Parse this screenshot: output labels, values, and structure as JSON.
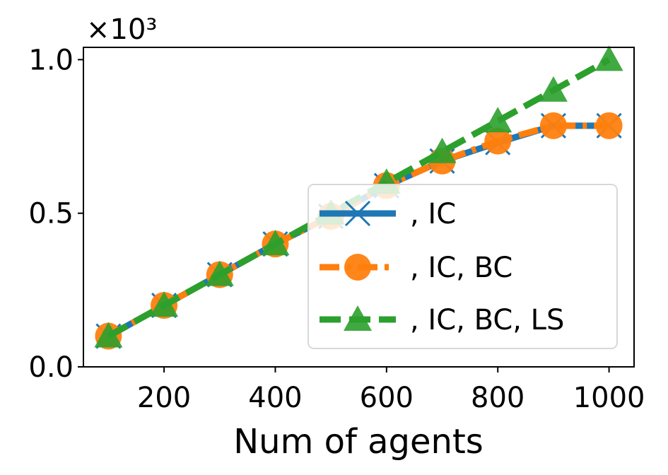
{
  "chart_data": {
    "type": "line",
    "xlabel": "Num of agents",
    "y_multiplier": "×10³",
    "x": [
      100,
      200,
      300,
      400,
      500,
      600,
      700,
      800,
      900,
      1000
    ],
    "xlim": [
      55,
      1045
    ],
    "ylim": [
      0,
      1.04
    ],
    "xticks": [
      200,
      400,
      600,
      800,
      1000
    ],
    "yticks": [
      0.0,
      0.5,
      1.0
    ],
    "ytick_labels": [
      "0.0",
      "0.5",
      "1.0"
    ],
    "grid": false,
    "legend_position": "lower-right",
    "series": [
      {
        "name": ", IC",
        "color": "#1f77b4",
        "marker": "x",
        "linestyle": "solid",
        "values": [
          0.1,
          0.2,
          0.3,
          0.4,
          0.49,
          0.59,
          0.67,
          0.73,
          0.785,
          0.785
        ]
      },
      {
        "name": ", IC, BC",
        "color": "#ff7f0e",
        "marker": "circle",
        "linestyle": "dashdot",
        "values": [
          0.1,
          0.2,
          0.3,
          0.4,
          0.49,
          0.59,
          0.67,
          0.735,
          0.785,
          0.785
        ]
      },
      {
        "name": ", IC, BC, LS",
        "color": "#2ca02c",
        "marker": "triangle",
        "linestyle": "dashed",
        "values": [
          0.1,
          0.2,
          0.3,
          0.4,
          0.5,
          0.6,
          0.7,
          0.8,
          0.9,
          1.0
        ]
      }
    ]
  }
}
